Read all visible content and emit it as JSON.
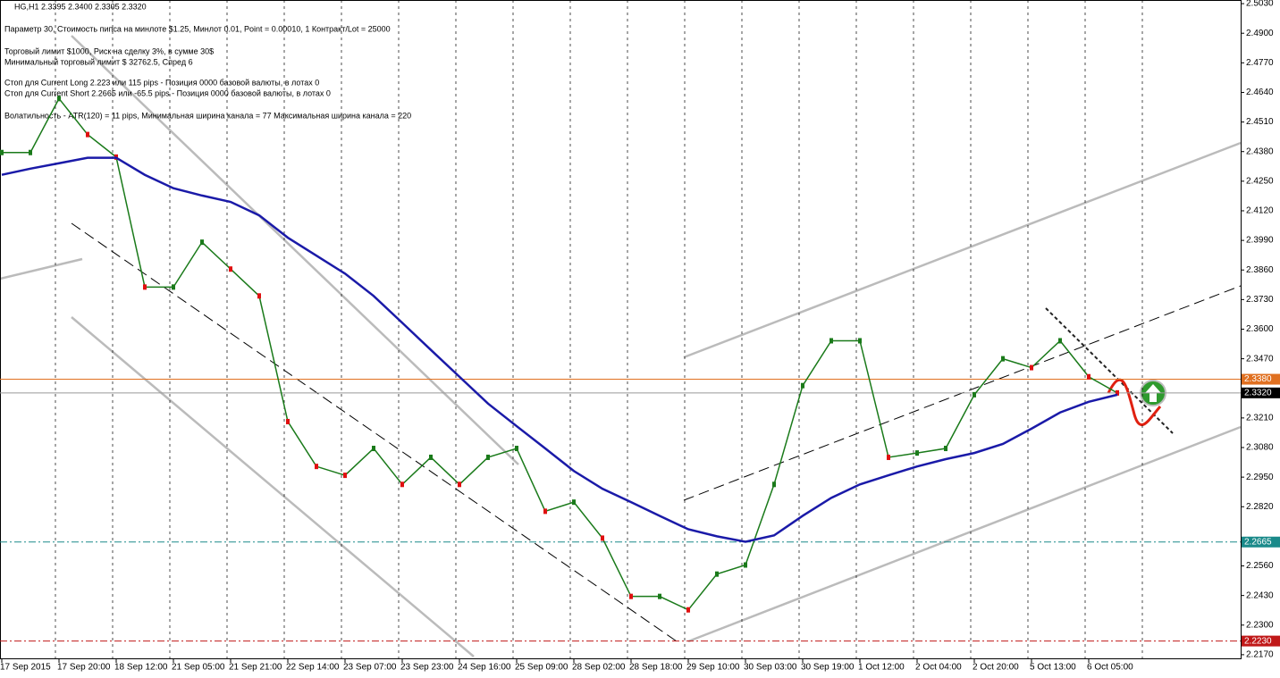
{
  "info": [
    "HG,H1  2.3395 2.3400 2.3305 2.3320",
    "Параметр 30,  Стоимость пипса на минлоте  $1.25,   Минлот 0.01,  Point = 0.00010,   1 Контракт/Lot = 25000",
    "Торговый лимит $1000, Риск на сделку 3%,  в сумме 30$",
    "Минимальный торговый лимит  $ 32762.5,   Спред  6",
    "Стоп для Current Long  2.223  или  115 pips -  Позиция 0000 базовой валюты,  в лотах 0",
    "Стоп для Current Short 2.2665  или  -65.5 pips -  Позиция 0000 базовой валюты,  в лотах 0",
    "Волатильность - ATR(120) = 11 pips,  Минимальная ширина канала = 77    Максимальная ширина канала = 220"
  ],
  "chart_data": {
    "type": "line",
    "categories": [
      "17 Sep 2015",
      null,
      "17 Sep 20:00",
      null,
      "18 Sep 12:00",
      null,
      "21 Sep 05:00",
      null,
      "21 Sep 21:00",
      null,
      "22 Sep 14:00",
      null,
      "23 Sep 07:00",
      null,
      "23 Sep 23:00",
      null,
      "24 Sep 16:00",
      null,
      "25 Sep 09:00",
      null,
      "28 Sep 02:00",
      null,
      "28 Sep 18:00",
      null,
      "29 Sep 10:00",
      null,
      "30 Sep 03:00",
      null,
      "30 Sep 19:00",
      null,
      "1 Oct 12:00",
      null,
      "2 Oct 04:00",
      null,
      "2 Oct 20:00",
      null,
      "5 Oct 13:00",
      null,
      "6 Oct 05:00",
      null
    ],
    "series": [
      {
        "color": "#1a7a1a",
        "values": [
          2.4376,
          2.4376,
          2.4613,
          2.4455,
          2.4356,
          2.3785,
          2.3785,
          2.3982,
          2.3864,
          2.3746,
          2.3194,
          2.2997,
          2.2958,
          2.3076,
          2.2918,
          2.3037,
          2.2918,
          2.3037,
          2.3076,
          2.28,
          2.284,
          2.2682,
          2.2426,
          2.2426,
          2.2367,
          2.2524,
          2.2564,
          2.2918,
          2.3352,
          2.3549,
          2.3549,
          2.3037,
          2.3056,
          2.3076,
          2.3312,
          2.347,
          2.3431,
          2.3549,
          2.3391,
          2.332
        ]
      },
      {
        "color": "#1a1aa8",
        "values": [
          2.4278,
          2.4305,
          2.4329,
          2.4353,
          2.4353,
          2.4278,
          2.4219,
          2.4187,
          2.4159,
          2.41,
          2.4002,
          2.3923,
          2.3844,
          2.3746,
          2.3628,
          2.3509,
          2.3391,
          2.3273,
          2.3174,
          2.3076,
          2.2977,
          2.2899,
          2.284,
          2.278,
          2.2721,
          2.269,
          2.2666,
          2.2694,
          2.278,
          2.2859,
          2.2918,
          2.2958,
          2.2997,
          2.3029,
          2.3056,
          2.3096,
          2.3163,
          2.3234,
          2.3281,
          2.3312
        ]
      }
    ],
    "ylim": [
      2.215,
      2.5046
    ],
    "yticks": [
      {
        "value": 2.503,
        "label": "2.5030"
      },
      {
        "value": 2.49,
        "label": "2.4900"
      },
      {
        "value": 2.477,
        "label": "2.4770"
      },
      {
        "value": 2.464,
        "label": "2.4640"
      },
      {
        "value": 2.451,
        "label": "2.4510"
      },
      {
        "value": 2.438,
        "label": "2.4380"
      },
      {
        "value": 2.425,
        "label": "2.4250"
      },
      {
        "value": 2.412,
        "label": "2.4120"
      },
      {
        "value": 2.399,
        "label": "2.3990"
      },
      {
        "value": 2.386,
        "label": "2.3860"
      },
      {
        "value": 2.373,
        "label": "2.3730"
      },
      {
        "value": 2.36,
        "label": "2.3600"
      },
      {
        "value": 2.347,
        "label": "2.3470"
      },
      {
        "value": 2.321,
        "label": "2.3210"
      },
      {
        "value": 2.308,
        "label": "2.3080"
      },
      {
        "value": 2.295,
        "label": "2.2950"
      },
      {
        "value": 2.282,
        "label": "2.2820"
      },
      {
        "value": 2.256,
        "label": "2.2560"
      },
      {
        "value": 2.243,
        "label": "2.2430"
      },
      {
        "value": 2.23,
        "label": "2.2300"
      },
      {
        "value": 2.217,
        "label": "2.2170"
      }
    ],
    "levels": [
      {
        "value": 2.338,
        "label": "2.3380",
        "color": "#e07020"
      },
      {
        "value": 2.332,
        "label": "2.3320",
        "color": "#000000"
      },
      {
        "value": 2.2665,
        "label": "2.2665",
        "color": "#1a8a8a"
      },
      {
        "value": 2.223,
        "label": "2.2230",
        "color": "#c01818"
      }
    ],
    "grid": true
  }
}
